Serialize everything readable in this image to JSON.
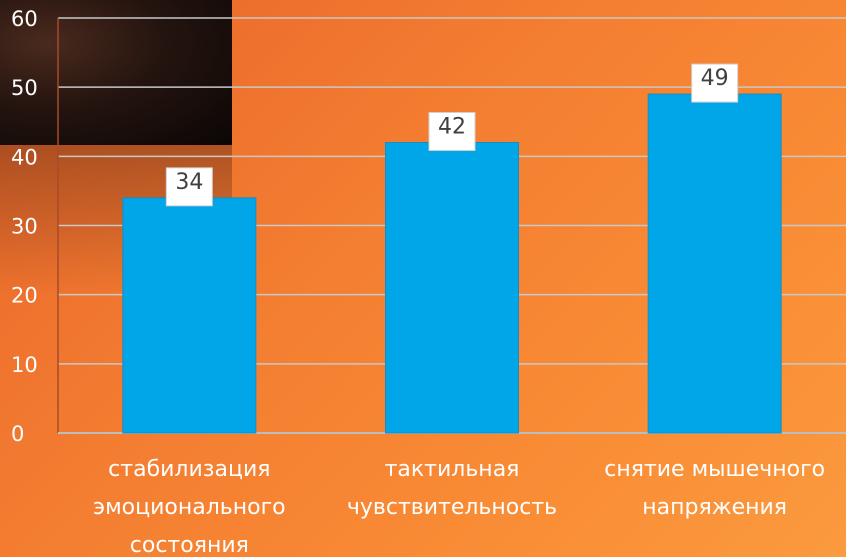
{
  "chart_data": {
    "type": "bar",
    "categories": [
      [
        "стабилизация",
        "эмоционального",
        "состояния"
      ],
      [
        "тактильная",
        "чувствительность"
      ],
      [
        "снятие мышечного",
        "напряжения"
      ]
    ],
    "values": [
      34,
      42,
      49
    ],
    "data_labels": [
      "34",
      "42",
      "49"
    ],
    "y_ticks": [
      "0",
      "10",
      "20",
      "30",
      "40",
      "50",
      "60"
    ],
    "ylim": [
      0,
      60
    ],
    "grid": true,
    "legend": "none",
    "colors": {
      "bar": "#00a6e8",
      "bar_border": "#1a8bbf",
      "grid": "#c8c8c8",
      "label_box": "#ffffff",
      "label_text": "#404040",
      "axis_text": "#ffffff"
    }
  }
}
